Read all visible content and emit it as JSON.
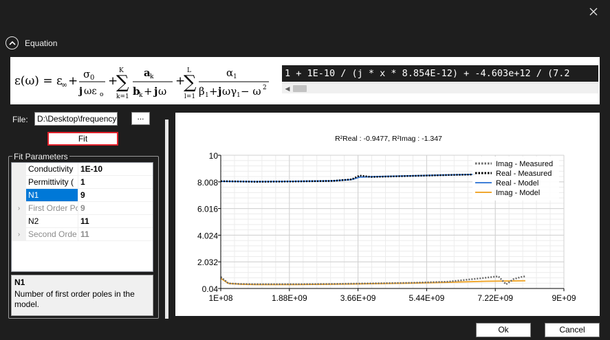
{
  "window": {
    "close_icon": "close-icon"
  },
  "equation": {
    "toggle_label": "Equation",
    "toggle_icon": "chevron-up-circle-icon",
    "code": "1 + 1E-10 / (j * x * 8.854E-12) + -4.603e+12 / (7.2"
  },
  "file": {
    "label": "File:",
    "path": "D:\\Desktop\\frequency",
    "browse_label": "...",
    "fit_label": "Fit"
  },
  "fit_parameters": {
    "title": "Fit Parameters",
    "rows": [
      {
        "name": "Conductivity",
        "value": "1E-10",
        "expander": ""
      },
      {
        "name": "Permittivity (",
        "value": "1",
        "expander": ""
      },
      {
        "name": "N1",
        "value": "9",
        "expander": ""
      },
      {
        "name": "First Order Pc",
        "value": "9",
        "expander": "›"
      },
      {
        "name": "N2",
        "value": "11",
        "expander": ""
      },
      {
        "name": "Second Orde",
        "value": "11",
        "expander": "›"
      }
    ],
    "description_title": "N1",
    "description_text": "Number of first order poles in the model."
  },
  "buttons": {
    "ok": "Ok",
    "cancel": "Cancel"
  },
  "colors": {
    "imag_measured": "#6b6b6b",
    "real_measured": "#000000",
    "real_model": "#3f7fd8",
    "imag_model": "#f0a830",
    "fit_highlight": "#e0202a",
    "selection": "#0078d7"
  },
  "chart_data": {
    "type": "line",
    "title": "R²Real : -0.9477, R²Imag : -1.347",
    "xlabel": "",
    "ylabel": "",
    "xlim": [
      100000000,
      9000000000
    ],
    "ylim": [
      0.04,
      10
    ],
    "x_ticks": [
      "1E+08",
      "1.88E+09",
      "3.66E+09",
      "5.44E+09",
      "7.22E+09",
      "9E+09"
    ],
    "y_ticks": [
      "10",
      "8.008",
      "6.016",
      "4.024",
      "2.032",
      "0.04"
    ],
    "grid": true,
    "legend_position": "top-right",
    "series": [
      {
        "name": "Imag - Measured",
        "style": "dotted",
        "x": [
          100000000,
          300000000,
          600000000,
          1000000000,
          2000000000,
          3000000000,
          4000000000,
          5000000000,
          6000000000,
          7000000000,
          7300000000,
          7500000000,
          7700000000,
          7900000000,
          8000000000
        ],
        "values": [
          0.9,
          0.42,
          0.38,
          0.36,
          0.36,
          0.38,
          0.42,
          0.46,
          0.55,
          0.85,
          0.95,
          0.35,
          0.75,
          0.9,
          0.95
        ]
      },
      {
        "name": "Real - Measured",
        "style": "dotted",
        "x": [
          100000000,
          1000000000,
          2000000000,
          3000000000,
          3500000000,
          3700000000,
          4000000000,
          5000000000,
          6000000000,
          6700000000
        ],
        "values": [
          8.06,
          8.02,
          8.04,
          8.08,
          8.2,
          8.48,
          8.38,
          8.45,
          8.52,
          8.56
        ]
      },
      {
        "name": "Real - Model",
        "style": "solid",
        "x": [
          100000000,
          1000000000,
          2000000000,
          3000000000,
          3500000000,
          3700000000,
          4000000000,
          5000000000,
          6000000000,
          6700000000
        ],
        "values": [
          8.05,
          8.03,
          8.05,
          8.09,
          8.18,
          8.36,
          8.4,
          8.46,
          8.53,
          8.57
        ]
      },
      {
        "name": "Imag - Model",
        "style": "solid",
        "x": [
          100000000,
          300000000,
          600000000,
          1000000000,
          2000000000,
          3000000000,
          4000000000,
          5000000000,
          6000000000,
          7000000000,
          7500000000,
          8000000000
        ],
        "values": [
          0.8,
          0.42,
          0.36,
          0.34,
          0.34,
          0.36,
          0.4,
          0.44,
          0.5,
          0.58,
          0.6,
          0.62
        ]
      }
    ]
  }
}
